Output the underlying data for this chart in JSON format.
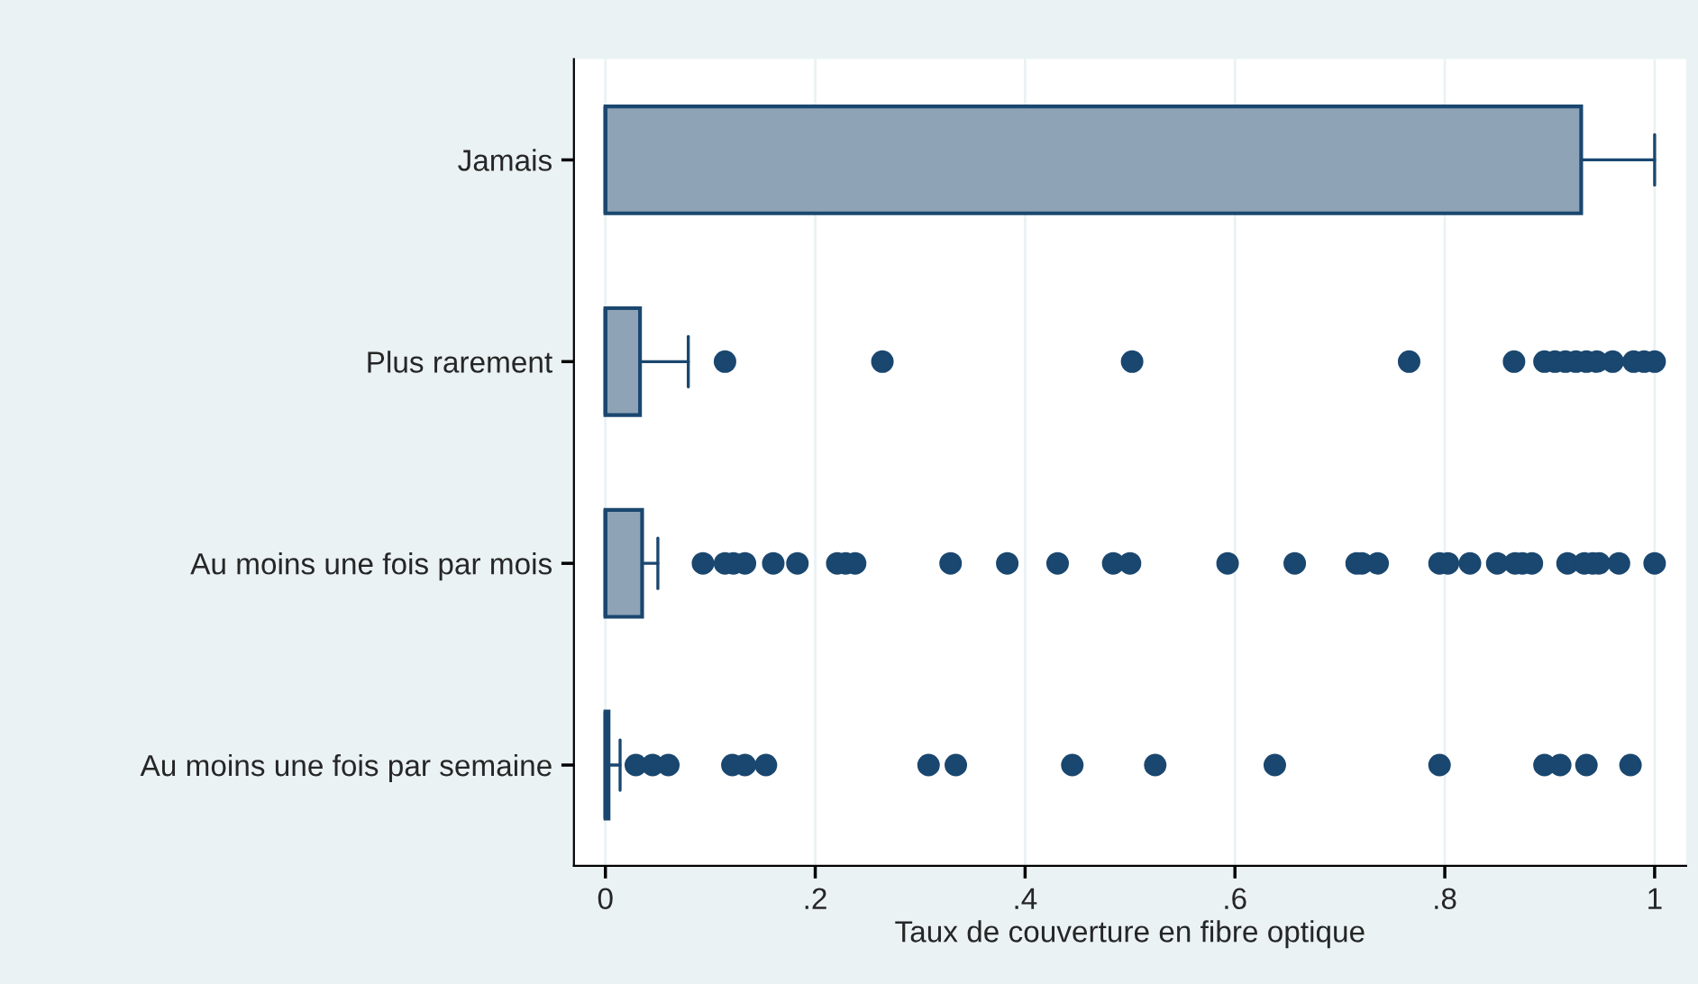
{
  "chart_data": {
    "type": "box",
    "orientation": "horizontal",
    "xlabel": "Taux de couverture en fibre optique",
    "categories": [
      "Jamais",
      "Plus rarement",
      "Au moins une fois par mois",
      "Au moins une fois par semaine"
    ],
    "series": [
      {
        "color": "#8ea3b6",
        "boxes": [
          {
            "low": 0,
            "q1": 0,
            "median": 0,
            "q3": 0.93,
            "high": 1.0
          },
          {
            "low": 0,
            "q1": 0,
            "median": 0,
            "q3": 0.033,
            "high": 0.079,
            "outliers": [
              0.114,
              0.264,
              0.502,
              0.766,
              0.866,
              0.895,
              0.905,
              0.915,
              0.925,
              0.935,
              0.945,
              0.96,
              0.98,
              0.99,
              1.0
            ]
          },
          {
            "low": 0,
            "q1": 0,
            "median": 0,
            "q3": 0.035,
            "high": 0.05,
            "outliers": [
              0.093,
              0.114,
              0.122,
              0.133,
              0.16,
              0.183,
              0.221,
              0.229,
              0.238,
              0.329,
              0.383,
              0.431,
              0.484,
              0.5,
              0.593,
              0.657,
              0.716,
              0.721,
              0.736,
              0.795,
              0.803,
              0.824,
              0.85,
              0.867,
              0.874,
              0.883,
              0.917,
              0.933,
              0.941,
              0.947,
              0.966,
              1.0
            ]
          },
          {
            "low": 0,
            "q1": 0,
            "median": 0,
            "q3": 0.003,
            "high": 0.014,
            "outliers": [
              0.029,
              0.045,
              0.06,
              0.121,
              0.133,
              0.153,
              0.308,
              0.334,
              0.445,
              0.524,
              0.638,
              0.795,
              0.895,
              0.91,
              0.935,
              0.977
            ]
          }
        ]
      }
    ],
    "xlim": [
      -0.03,
      1.03
    ],
    "xticks": [
      0,
      {
        "value": 0.2,
        "label": ".2"
      },
      {
        "value": 0.4,
        "label": ".4"
      },
      {
        "value": 0.6,
        "label": ".6"
      },
      {
        "value": 0.8,
        "label": ".8"
      },
      1
    ],
    "grid": "x",
    "marker": "circle"
  }
}
